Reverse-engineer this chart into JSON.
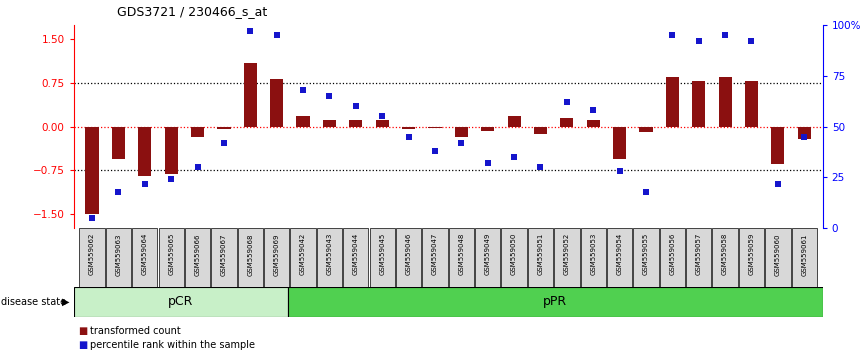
{
  "title": "GDS3721 / 230466_s_at",
  "samples": [
    "GSM559062",
    "GSM559063",
    "GSM559064",
    "GSM559065",
    "GSM559066",
    "GSM559067",
    "GSM559068",
    "GSM559069",
    "GSM559042",
    "GSM559043",
    "GSM559044",
    "GSM559045",
    "GSM559046",
    "GSM559047",
    "GSM559048",
    "GSM559049",
    "GSM559050",
    "GSM559051",
    "GSM559052",
    "GSM559053",
    "GSM559054",
    "GSM559055",
    "GSM559056",
    "GSM559057",
    "GSM559058",
    "GSM559059",
    "GSM559060",
    "GSM559061"
  ],
  "transformed_count": [
    -1.5,
    -0.55,
    -0.85,
    -0.82,
    -0.18,
    -0.05,
    1.1,
    0.82,
    0.18,
    0.12,
    0.12,
    0.12,
    -0.05,
    -0.03,
    -0.18,
    -0.08,
    0.18,
    -0.12,
    0.15,
    0.12,
    -0.55,
    -0.1,
    0.85,
    0.78,
    0.85,
    0.78,
    -0.65,
    -0.22
  ],
  "percentile_rank": [
    5,
    18,
    22,
    24,
    30,
    42,
    97,
    95,
    68,
    65,
    60,
    55,
    45,
    38,
    42,
    32,
    35,
    30,
    62,
    58,
    28,
    18,
    95,
    92,
    95,
    92,
    22,
    45
  ],
  "pCR_count": 8,
  "pCR_color": "#c8f0c8",
  "pPR_color": "#50d050",
  "bar_color": "#8B1010",
  "dot_color": "#1515CC",
  "ylim_left": [
    -1.75,
    1.75
  ],
  "ylim_right": [
    0,
    100
  ],
  "yticks_left": [
    -1.5,
    -0.75,
    0,
    0.75,
    1.5
  ],
  "yticks_right": [
    0,
    25,
    50,
    75,
    100
  ],
  "hlines": [
    -0.75,
    0,
    0.75
  ],
  "hline_0_color": "red",
  "hline_other_color": "black"
}
